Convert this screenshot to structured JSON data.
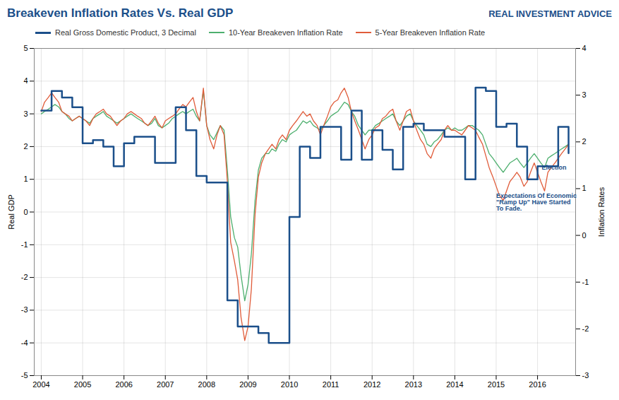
{
  "chart_data": {
    "type": "line",
    "title": "Breakeven Inflation Rates Vs. Real GDP",
    "y_label": "Real GDP",
    "y2_label": "Inflation Rates",
    "xlim": [
      2003.83,
      2016.92
    ],
    "xticks": [
      2004,
      2005,
      2006,
      2007,
      2008,
      2009,
      2010,
      2011,
      2012,
      2013,
      2014,
      2015,
      2016
    ],
    "ylim": [
      -5.0,
      5.0
    ],
    "yticks": [
      -5,
      -4,
      -3,
      -2,
      -1,
      0,
      1,
      2,
      3,
      4,
      5
    ],
    "y2lim": [
      -3.0,
      4.0
    ],
    "y2ticks": [
      -3,
      -2,
      -1,
      0,
      1,
      2,
      3,
      4
    ],
    "grid": true,
    "legend": "top left",
    "annotations": [
      {
        "text": "Election",
        "x": 2016.1,
        "y": 1.3
      },
      {
        "text": "Expectations Of Economic\n\"Ramp Up\" Have Started\nTo Fade.",
        "x": 2015.0,
        "y": 0.05
      },
      {
        "text": "REAL INVESTMENT ADVICE"
      }
    ],
    "series": [
      {
        "name": "Real Gross Domestic Product, 3 Decimal",
        "color": "#1B4F8A",
        "type": "step",
        "x": [
          2004.0,
          2004.25,
          2004.5,
          2004.75,
          2005.0,
          2005.25,
          2005.5,
          2005.75,
          2006.0,
          2006.25,
          2006.5,
          2006.75,
          2007.0,
          2007.25,
          2007.5,
          2007.75,
          2008.0,
          2008.25,
          2008.5,
          2008.75,
          2009.0,
          2009.25,
          2009.5,
          2009.75,
          2010.0,
          2010.25,
          2010.5,
          2010.75,
          2011.0,
          2011.25,
          2011.5,
          2011.75,
          2012.0,
          2012.25,
          2012.5,
          2012.75,
          2013.0,
          2013.25,
          2013.5,
          2013.75,
          2014.0,
          2014.25,
          2014.5,
          2014.75,
          2015.0,
          2015.25,
          2015.5,
          2015.75,
          2016.0,
          2016.25,
          2016.5,
          2016.75
        ],
        "values": [
          3.1,
          3.7,
          3.5,
          3.2,
          2.1,
          2.2,
          2.0,
          1.4,
          2.1,
          2.3,
          2.3,
          1.5,
          1.5,
          3.2,
          2.5,
          1.1,
          0.9,
          0.9,
          -2.7,
          -3.5,
          -3.5,
          -3.7,
          -4.0,
          -4.0,
          -0.15,
          2.0,
          1.65,
          2.6,
          2.6,
          1.6,
          3.1,
          1.6,
          2.5,
          1.9,
          1.3,
          2.6,
          2.7,
          2.5,
          2.5,
          2.3,
          2.3,
          1.0,
          3.8,
          3.7,
          2.6,
          2.7,
          2.0,
          1.0,
          1.4,
          1.4,
          2.6,
          1.8
        ]
      },
      {
        "name": "10-Year Breakeven Inflation Rate",
        "color": "#4DAF6E",
        "type": "line",
        "axis": "y2",
        "x": [
          2004.0,
          2004.08,
          2004.17,
          2004.25,
          2004.33,
          2004.42,
          2004.5,
          2004.58,
          2004.67,
          2004.75,
          2004.83,
          2004.92,
          2005.0,
          2005.08,
          2005.17,
          2005.25,
          2005.33,
          2005.42,
          2005.5,
          2005.58,
          2005.67,
          2005.75,
          2005.83,
          2005.92,
          2006.0,
          2006.08,
          2006.17,
          2006.25,
          2006.33,
          2006.42,
          2006.5,
          2006.58,
          2006.67,
          2006.75,
          2006.83,
          2006.92,
          2007.0,
          2007.08,
          2007.17,
          2007.25,
          2007.33,
          2007.42,
          2007.5,
          2007.58,
          2007.67,
          2007.75,
          2007.83,
          2007.92,
          2008.0,
          2008.08,
          2008.17,
          2008.25,
          2008.33,
          2008.42,
          2008.5,
          2008.58,
          2008.67,
          2008.75,
          2008.83,
          2008.92,
          2009.0,
          2009.08,
          2009.17,
          2009.25,
          2009.33,
          2009.42,
          2009.5,
          2009.58,
          2009.67,
          2009.75,
          2009.83,
          2009.92,
          2010.0,
          2010.08,
          2010.17,
          2010.25,
          2010.33,
          2010.42,
          2010.5,
          2010.58,
          2010.67,
          2010.75,
          2010.83,
          2010.92,
          2011.0,
          2011.08,
          2011.17,
          2011.25,
          2011.33,
          2011.42,
          2011.5,
          2011.58,
          2011.67,
          2011.75,
          2011.83,
          2011.92,
          2012.0,
          2012.08,
          2012.17,
          2012.25,
          2012.33,
          2012.42,
          2012.5,
          2012.58,
          2012.67,
          2012.75,
          2012.83,
          2012.92,
          2013.0,
          2013.08,
          2013.17,
          2013.25,
          2013.33,
          2013.42,
          2013.5,
          2013.58,
          2013.67,
          2013.75,
          2013.83,
          2013.92,
          2014.0,
          2014.08,
          2014.17,
          2014.25,
          2014.33,
          2014.42,
          2014.5,
          2014.58,
          2014.67,
          2014.75,
          2014.83,
          2014.92,
          2015.0,
          2015.08,
          2015.17,
          2015.25,
          2015.33,
          2015.42,
          2015.5,
          2015.58,
          2015.67,
          2015.75,
          2015.83,
          2015.92,
          2016.0,
          2016.08,
          2016.17,
          2016.25,
          2016.33,
          2016.42,
          2016.5,
          2016.58,
          2016.67,
          2016.75
        ],
        "values": [
          2.6,
          2.65,
          2.7,
          2.75,
          2.8,
          2.75,
          2.65,
          2.6,
          2.5,
          2.45,
          2.5,
          2.55,
          2.5,
          2.45,
          2.4,
          2.5,
          2.55,
          2.6,
          2.65,
          2.55,
          2.5,
          2.45,
          2.4,
          2.45,
          2.5,
          2.55,
          2.6,
          2.55,
          2.5,
          2.45,
          2.4,
          2.35,
          2.4,
          2.5,
          2.35,
          2.3,
          2.35,
          2.4,
          2.5,
          2.55,
          2.6,
          2.65,
          2.6,
          2.65,
          2.7,
          2.55,
          2.45,
          3.1,
          2.35,
          2.15,
          2.05,
          2.2,
          2.35,
          2.25,
          1.4,
          0.4,
          -0.05,
          -0.25,
          -0.85,
          -1.4,
          -1.05,
          -0.4,
          0.75,
          1.4,
          1.65,
          1.75,
          1.75,
          1.85,
          1.8,
          1.95,
          2.05,
          2.0,
          2.15,
          2.2,
          2.25,
          2.35,
          2.45,
          2.4,
          2.45,
          2.35,
          2.3,
          2.25,
          2.35,
          2.45,
          2.55,
          2.6,
          2.65,
          2.75,
          2.85,
          2.8,
          2.65,
          2.55,
          2.35,
          2.25,
          2.15,
          2.25,
          2.25,
          2.35,
          2.4,
          2.45,
          2.5,
          2.55,
          2.6,
          2.45,
          2.35,
          2.45,
          2.55,
          2.6,
          2.45,
          2.35,
          2.25,
          2.15,
          1.95,
          1.9,
          2.0,
          2.05,
          2.15,
          2.25,
          2.3,
          2.25,
          2.3,
          2.25,
          2.25,
          2.3,
          2.35,
          2.35,
          2.3,
          2.25,
          2.15,
          1.95,
          1.75,
          1.65,
          1.55,
          1.45,
          1.35,
          1.45,
          1.55,
          1.6,
          1.65,
          1.55,
          1.45,
          1.55,
          1.65,
          1.75,
          1.65,
          1.55,
          1.45,
          1.65,
          1.7,
          1.75,
          1.8,
          1.85,
          1.9,
          1.95
        ]
      },
      {
        "name": "5-Year Breakeven Inflation Rate",
        "color": "#E05C3A",
        "type": "line",
        "axis": "y2",
        "x": [
          2004.0,
          2004.08,
          2004.17,
          2004.25,
          2004.33,
          2004.42,
          2004.5,
          2004.58,
          2004.67,
          2004.75,
          2004.83,
          2004.92,
          2005.0,
          2005.08,
          2005.17,
          2005.25,
          2005.33,
          2005.42,
          2005.5,
          2005.58,
          2005.67,
          2005.75,
          2005.83,
          2005.92,
          2006.0,
          2006.08,
          2006.17,
          2006.25,
          2006.33,
          2006.42,
          2006.5,
          2006.58,
          2006.67,
          2006.75,
          2006.83,
          2006.92,
          2007.0,
          2007.08,
          2007.17,
          2007.25,
          2007.33,
          2007.42,
          2007.5,
          2007.58,
          2007.67,
          2007.75,
          2007.83,
          2007.92,
          2008.0,
          2008.08,
          2008.17,
          2008.25,
          2008.33,
          2008.42,
          2008.5,
          2008.58,
          2008.67,
          2008.75,
          2008.83,
          2008.92,
          2009.0,
          2009.08,
          2009.17,
          2009.25,
          2009.33,
          2009.42,
          2009.5,
          2009.58,
          2009.67,
          2009.75,
          2009.83,
          2009.92,
          2010.0,
          2010.08,
          2010.17,
          2010.25,
          2010.33,
          2010.42,
          2010.5,
          2010.58,
          2010.67,
          2010.75,
          2010.83,
          2010.92,
          2011.0,
          2011.08,
          2011.17,
          2011.25,
          2011.33,
          2011.42,
          2011.5,
          2011.58,
          2011.67,
          2011.75,
          2011.83,
          2011.92,
          2012.0,
          2012.08,
          2012.17,
          2012.25,
          2012.33,
          2012.42,
          2012.5,
          2012.58,
          2012.67,
          2012.75,
          2012.83,
          2012.92,
          2013.0,
          2013.08,
          2013.17,
          2013.25,
          2013.33,
          2013.42,
          2013.5,
          2013.58,
          2013.67,
          2013.75,
          2013.83,
          2013.92,
          2014.0,
          2014.08,
          2014.17,
          2014.25,
          2014.33,
          2014.42,
          2014.5,
          2014.58,
          2014.67,
          2014.75,
          2014.83,
          2014.92,
          2015.0,
          2015.08,
          2015.17,
          2015.25,
          2015.33,
          2015.42,
          2015.5,
          2015.58,
          2015.67,
          2015.75,
          2015.83,
          2015.92,
          2016.0,
          2016.08,
          2016.17,
          2016.25,
          2016.33,
          2016.42,
          2016.5,
          2016.58,
          2016.67,
          2016.75
        ],
        "values": [
          2.65,
          2.85,
          2.95,
          3.05,
          2.95,
          2.85,
          2.65,
          2.6,
          2.55,
          2.45,
          2.5,
          2.55,
          2.5,
          2.45,
          2.35,
          2.5,
          2.6,
          2.65,
          2.7,
          2.6,
          2.55,
          2.45,
          2.35,
          2.45,
          2.5,
          2.6,
          2.65,
          2.6,
          2.55,
          2.5,
          2.4,
          2.35,
          2.45,
          2.55,
          2.4,
          2.3,
          2.45,
          2.5,
          2.55,
          2.6,
          2.7,
          2.8,
          2.75,
          2.85,
          2.95,
          2.65,
          2.45,
          3.15,
          2.35,
          2.05,
          1.85,
          2.15,
          2.35,
          2.15,
          1.15,
          -0.15,
          -0.55,
          -0.95,
          -1.75,
          -2.25,
          -1.95,
          -1.15,
          0.45,
          1.25,
          1.55,
          1.75,
          1.85,
          1.95,
          1.85,
          2.05,
          2.15,
          2.05,
          2.25,
          2.35,
          2.45,
          2.55,
          2.65,
          2.55,
          2.6,
          2.45,
          2.35,
          2.15,
          2.35,
          2.55,
          2.75,
          2.85,
          2.9,
          3.05,
          3.15,
          2.95,
          2.65,
          2.45,
          2.25,
          2.05,
          1.85,
          2.05,
          2.15,
          2.3,
          2.35,
          2.5,
          2.55,
          2.65,
          2.7,
          2.45,
          2.25,
          2.45,
          2.65,
          2.7,
          2.45,
          2.25,
          2.05,
          1.95,
          1.75,
          1.65,
          1.85,
          1.95,
          2.05,
          2.25,
          2.35,
          2.25,
          2.25,
          2.2,
          2.15,
          2.25,
          2.35,
          2.3,
          2.25,
          2.1,
          1.95,
          1.7,
          1.45,
          1.25,
          1.05,
          0.85,
          0.75,
          0.95,
          1.15,
          1.25,
          1.35,
          1.25,
          1.05,
          1.15,
          1.35,
          1.55,
          1.35,
          1.15,
          0.95,
          1.35,
          1.45,
          1.55,
          1.65,
          1.75,
          1.85,
          1.95
        ]
      }
    ]
  }
}
